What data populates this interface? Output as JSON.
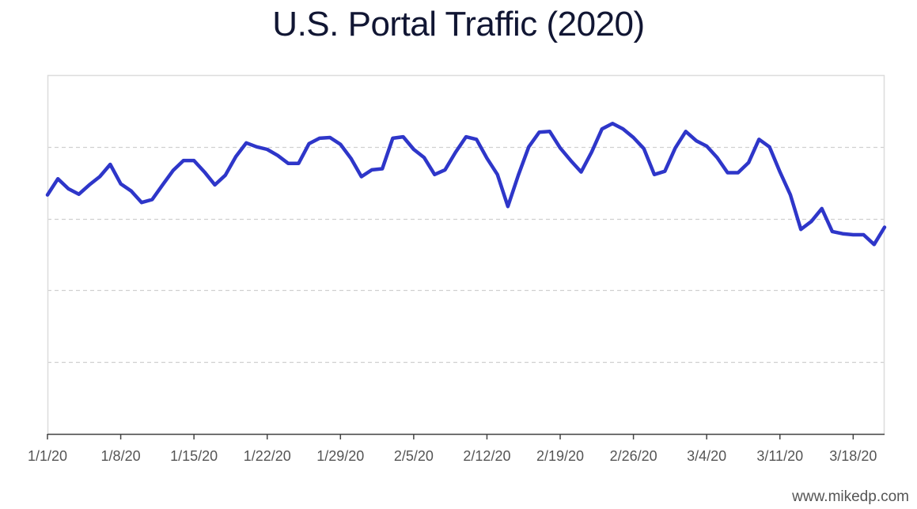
{
  "credit": "www.mikedp.com",
  "colors": {
    "line": "#2e36c9",
    "grid": "#d0d0d0",
    "frame": "#dcdcdc",
    "axis": "#444444",
    "title": "#111633"
  },
  "chart_data": {
    "type": "line",
    "title": "U.S. Portal Traffic (2020)",
    "xlabel": "",
    "ylabel": "",
    "ylim": [
      0,
      100
    ],
    "grid": true,
    "legend": "none",
    "x_tick_labels": [
      "1/1/20",
      "1/8/20",
      "1/15/20",
      "1/22/20",
      "1/29/20",
      "2/5/20",
      "2/12/20",
      "2/19/20",
      "2/26/20",
      "3/4/20",
      "3/11/20",
      "3/18/20"
    ],
    "x_tick_dates": [
      "2020-01-01",
      "2020-01-08",
      "2020-01-15",
      "2020-01-22",
      "2020-01-29",
      "2020-02-05",
      "2020-02-12",
      "2020-02-19",
      "2020-02-26",
      "2020-03-04",
      "2020-03-11",
      "2020-03-18"
    ],
    "x_range": [
      "2020-01-01",
      "2020-03-21"
    ],
    "y_gridlines": [
      20,
      40,
      60,
      80
    ],
    "series": [
      {
        "x": [
          "2020-01-01",
          "2020-01-02",
          "2020-01-03",
          "2020-01-04",
          "2020-01-05",
          "2020-01-06",
          "2020-01-07",
          "2020-01-08",
          "2020-01-09",
          "2020-01-10",
          "2020-01-11",
          "2020-01-12",
          "2020-01-13",
          "2020-01-14",
          "2020-01-15",
          "2020-01-16",
          "2020-01-17",
          "2020-01-18",
          "2020-01-19",
          "2020-01-20",
          "2020-01-21",
          "2020-01-22",
          "2020-01-23",
          "2020-01-24",
          "2020-01-25",
          "2020-01-26",
          "2020-01-27",
          "2020-01-28",
          "2020-01-29",
          "2020-01-30",
          "2020-01-31",
          "2020-02-01",
          "2020-02-02",
          "2020-02-03",
          "2020-02-04",
          "2020-02-05",
          "2020-02-06",
          "2020-02-07",
          "2020-02-08",
          "2020-02-09",
          "2020-02-10",
          "2020-02-11",
          "2020-02-12",
          "2020-02-13",
          "2020-02-14",
          "2020-02-15",
          "2020-02-16",
          "2020-02-17",
          "2020-02-18",
          "2020-02-19",
          "2020-02-20",
          "2020-02-21",
          "2020-02-22",
          "2020-02-23",
          "2020-02-24",
          "2020-02-25",
          "2020-02-26",
          "2020-02-27",
          "2020-02-28",
          "2020-02-29",
          "2020-03-01",
          "2020-03-02",
          "2020-03-03",
          "2020-03-04",
          "2020-03-05",
          "2020-03-06",
          "2020-03-07",
          "2020-03-08",
          "2020-03-09",
          "2020-03-10",
          "2020-03-11",
          "2020-03-12",
          "2020-03-13",
          "2020-03-14",
          "2020-03-15",
          "2020-03-16",
          "2020-03-17",
          "2020-03-18",
          "2020-03-19",
          "2020-03-20",
          "2020-03-21"
        ],
        "values": [
          66.6,
          71.1,
          68.3,
          66.8,
          69.4,
          71.7,
          75.1,
          69.7,
          67.7,
          64.5,
          65.3,
          69.4,
          73.4,
          76.2,
          76.2,
          73.0,
          69.4,
          72.1,
          77.3,
          81.1,
          80.0,
          79.3,
          77.6,
          75.4,
          75.4,
          80.9,
          82.4,
          82.6,
          80.7,
          76.8,
          71.7,
          73.6,
          73.9,
          82.4,
          82.8,
          79.3,
          77.0,
          72.3,
          73.6,
          78.5,
          82.8,
          82.1,
          76.8,
          72.3,
          63.4,
          72.1,
          80.0,
          84.1,
          84.3,
          79.7,
          76.2,
          73.0,
          78.5,
          85.0,
          86.5,
          85.0,
          82.6,
          79.5,
          72.3,
          73.2,
          79.7,
          84.3,
          81.7,
          80.2,
          77.0,
          72.8,
          72.8,
          75.6,
          82.1,
          80.0,
          73.0,
          66.6,
          57.0,
          59.2,
          62.8,
          56.4,
          55.8,
          55.5,
          55.5,
          52.8,
          57.6
        ]
      }
    ]
  }
}
